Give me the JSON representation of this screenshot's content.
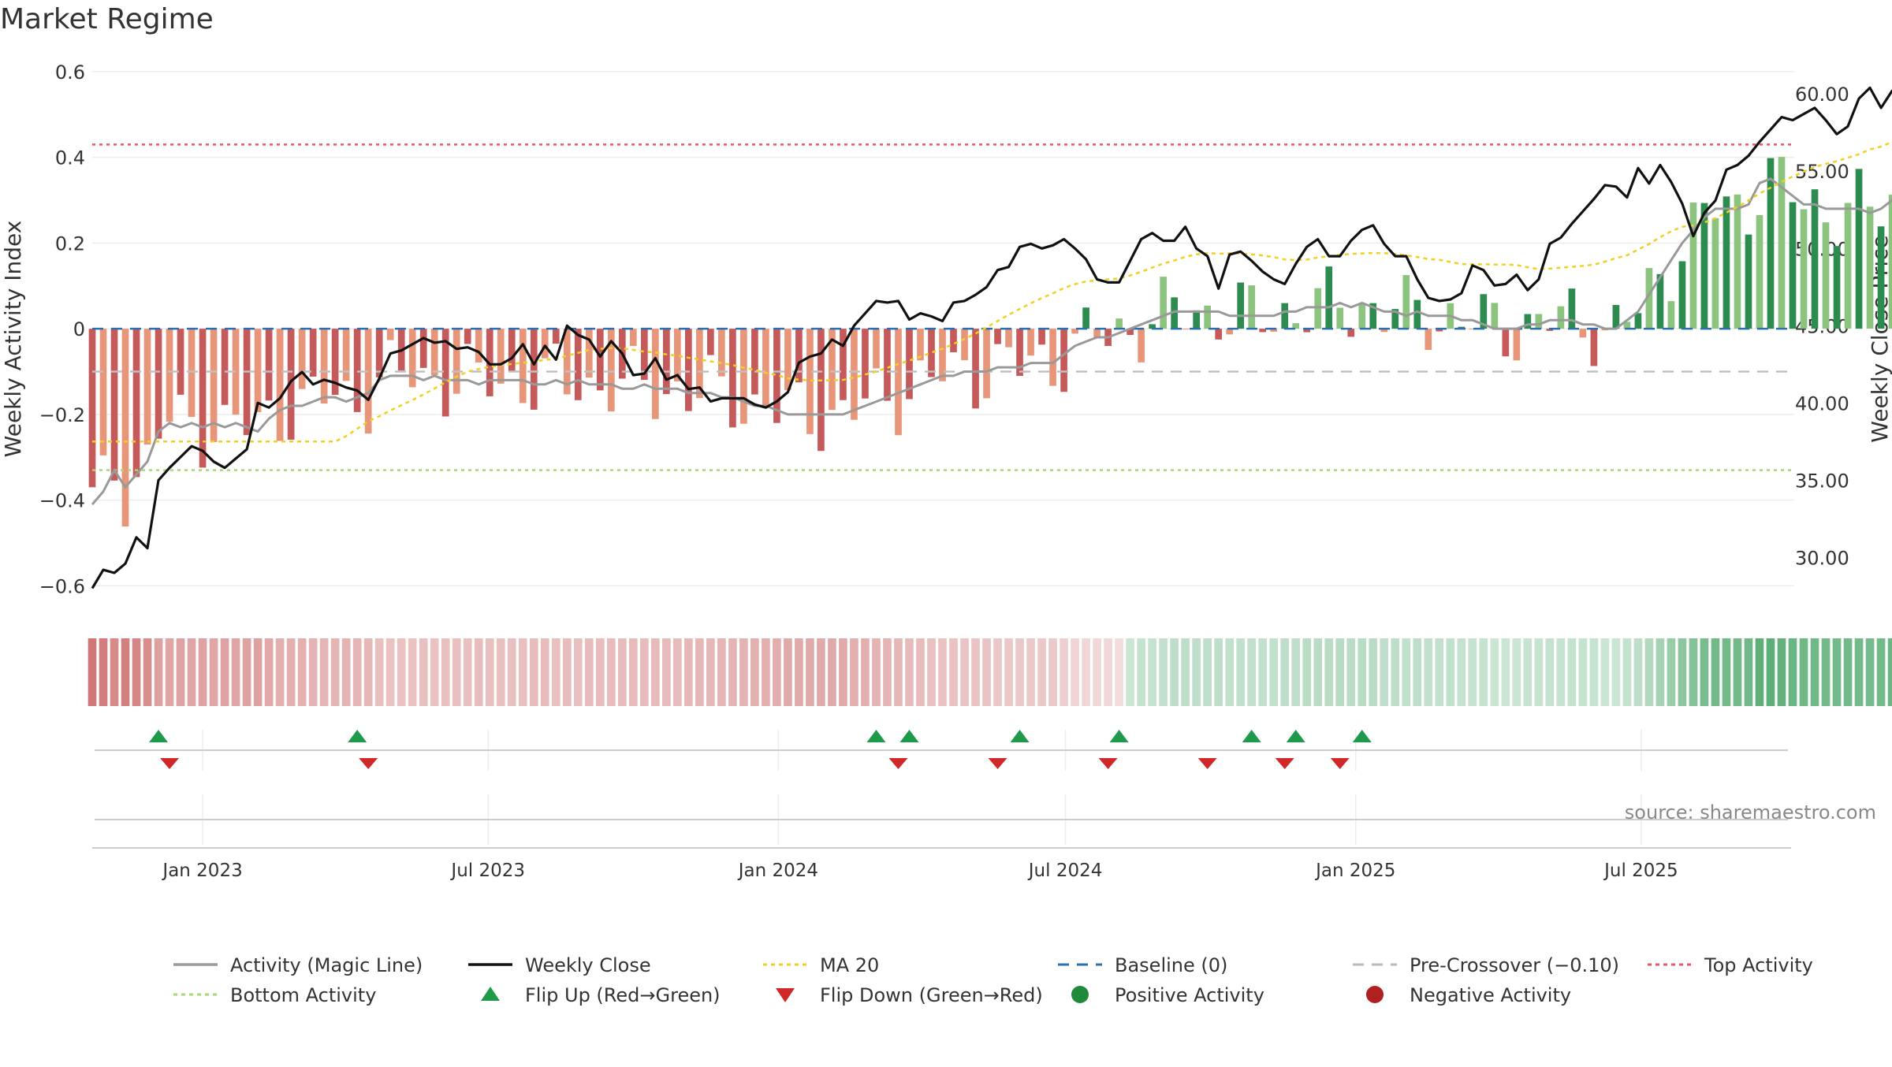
{
  "chart_data": {
    "type": "bar",
    "title": "Market Regime",
    "source": "source: sharemaestro.com",
    "y_left_label": "Weekly Activity Index",
    "y_right_label": "Weekly Close Price",
    "y_left_ticks": [
      "0.6",
      "0.4",
      "0.2",
      "0",
      "−0.2",
      "−0.4",
      "−0.6"
    ],
    "y_left_range": [
      -0.66,
      0.62
    ],
    "y_right_ticks": [
      "60.00",
      "55.00",
      "50.00",
      "45.00",
      "40.00",
      "35.00",
      "30.00"
    ],
    "y_right_range": [
      26.5,
      62.0
    ],
    "x_start": "2022-10-23",
    "x_end": "2025-10-06",
    "x_ticks": [
      "Jan 2023",
      "Jul 2023",
      "Jan 2024",
      "Jul 2024",
      "Jan 2025",
      "Jul 2025"
    ],
    "x_tick_dates": [
      "2023-01-01",
      "2023-07-01",
      "2024-01-01",
      "2024-07-01",
      "2025-01-01",
      "2025-07-01"
    ],
    "reference_lines": {
      "baseline": 0,
      "pre_crossover": -0.1,
      "top_activity": 0.43,
      "bottom_activity": -0.33
    },
    "legend": [
      {
        "label": "Activity (Magic Line)",
        "kind": "line",
        "color": "#999999"
      },
      {
        "label": "Weekly Close",
        "kind": "line",
        "color": "#111111"
      },
      {
        "label": "MA 20",
        "kind": "dotted",
        "color": "#f0d020"
      },
      {
        "label": "Baseline (0)",
        "kind": "dashed",
        "color": "#2a6fb0"
      },
      {
        "label": "Pre-Crossover (−0.10)",
        "kind": "dashed",
        "color": "#bbbbbb"
      },
      {
        "label": "Top Activity",
        "kind": "dotted",
        "color": "#e05a6a"
      },
      {
        "label": "Bottom Activity",
        "kind": "dotted",
        "color": "#a8d870"
      },
      {
        "label": "Flip Up (Red→Green)",
        "kind": "tri-up",
        "color": "#1f9a4a"
      },
      {
        "label": "Flip Down (Green→Red)",
        "kind": "tri-down",
        "color": "#d02828"
      },
      {
        "label": "Positive Activity",
        "kind": "dot",
        "color": "#1f8a3a"
      },
      {
        "label": "Negative Activity",
        "kind": "dot",
        "color": "#b02020"
      }
    ],
    "flip_up_dates": [
      "2022-12-04",
      "2023-04-09",
      "2024-03-03",
      "2024-03-24",
      "2024-06-02",
      "2024-08-04",
      "2024-10-27",
      "2024-11-24",
      "2025-01-05"
    ],
    "flip_down_dates": [
      "2022-12-11",
      "2023-04-16",
      "2024-03-17",
      "2024-05-19",
      "2024-07-28",
      "2024-09-29",
      "2024-11-17",
      "2024-12-22"
    ],
    "activity_weekly": [
      -0.41,
      -0.38,
      -0.33,
      -0.37,
      -0.34,
      -0.31,
      -0.24,
      -0.22,
      -0.23,
      -0.22,
      -0.23,
      -0.22,
      -0.23,
      -0.22,
      -0.23,
      -0.24,
      -0.21,
      -0.19,
      -0.18,
      -0.18,
      -0.17,
      -0.16,
      -0.16,
      -0.17,
      -0.16,
      -0.15,
      -0.12,
      -0.11,
      -0.11,
      -0.11,
      -0.12,
      -0.11,
      -0.12,
      -0.12,
      -0.12,
      -0.13,
      -0.12,
      -0.12,
      -0.12,
      -0.12,
      -0.13,
      -0.13,
      -0.12,
      -0.13,
      -0.12,
      -0.13,
      -0.13,
      -0.13,
      -0.14,
      -0.14,
      -0.13,
      -0.14,
      -0.14,
      -0.14,
      -0.15,
      -0.15,
      -0.15,
      -0.16,
      -0.16,
      -0.17,
      -0.18,
      -0.18,
      -0.19,
      -0.2,
      -0.2,
      -0.2,
      -0.2,
      -0.2,
      -0.2,
      -0.19,
      -0.18,
      -0.17,
      -0.16,
      -0.15,
      -0.14,
      -0.13,
      -0.12,
      -0.11,
      -0.11,
      -0.1,
      -0.1,
      -0.1,
      -0.09,
      -0.09,
      -0.09,
      -0.08,
      -0.08,
      -0.08,
      -0.06,
      -0.04,
      -0.03,
      -0.02,
      -0.02,
      -0.01,
      0.0,
      0.01,
      0.02,
      0.03,
      0.04,
      0.04,
      0.04,
      0.04,
      0.04,
      0.03,
      0.03,
      0.03,
      0.03,
      0.03,
      0.04,
      0.04,
      0.05,
      0.05,
      0.05,
      0.06,
      0.05,
      0.06,
      0.05,
      0.04,
      0.04,
      0.03,
      0.04,
      0.03,
      0.03,
      0.03,
      0.02,
      0.02,
      0.01,
      0.0,
      0.0,
      0.0,
      0.01,
      0.01,
      0.02,
      0.02,
      0.02,
      0.01,
      0.01,
      0.0,
      0.0,
      0.02,
      0.04,
      0.08,
      0.12,
      0.16,
      0.2,
      0.23,
      0.26,
      0.28,
      0.28,
      0.28,
      0.29,
      0.34,
      0.35,
      0.33,
      0.31,
      0.29,
      0.29,
      0.28,
      0.28,
      0.28,
      0.28,
      0.27,
      0.28,
      0.3,
      0.31,
      0.32,
      0.34,
      0.35,
      0.35,
      0.34,
      0.31,
      0.29,
      0.28,
      0.27,
      0.27
    ],
    "weekly_close": [
      28.0,
      29.2,
      29.0,
      29.6,
      31.3,
      30.6,
      35.0,
      35.8,
      36.5,
      37.2,
      36.9,
      36.2,
      35.8,
      36.4,
      37.0,
      40.0,
      39.7,
      40.3,
      41.4,
      42.0,
      41.2,
      41.5,
      41.3,
      41.0,
      40.8,
      40.2,
      41.6,
      43.2,
      43.4,
      43.8,
      44.2,
      43.9,
      44.0,
      43.5,
      43.6,
      43.3,
      42.5,
      42.5,
      42.9,
      43.8,
      42.5,
      43.7,
      42.8,
      45.0,
      44.4,
      44.1,
      43.0,
      44.0,
      43.2,
      41.8,
      41.9,
      42.9,
      41.5,
      41.8,
      40.9,
      41.0,
      40.1,
      40.3,
      40.3,
      40.3,
      39.9,
      39.7,
      40.1,
      40.7,
      42.6,
      43.0,
      43.2,
      44.1,
      43.7,
      45.0,
      45.8,
      46.6,
      46.5,
      46.6,
      45.4,
      45.8,
      45.6,
      45.3,
      46.5,
      46.6,
      47.0,
      47.5,
      48.6,
      48.8,
      50.1,
      50.3,
      50.0,
      50.2,
      50.6,
      50.0,
      49.3,
      48.0,
      47.8,
      47.8,
      49.2,
      50.6,
      51.0,
      50.5,
      50.5,
      51.4,
      50.0,
      49.5,
      47.4,
      49.6,
      49.8,
      49.2,
      48.5,
      48.0,
      47.7,
      49.0,
      50.1,
      50.6,
      49.5,
      49.5,
      50.5,
      51.2,
      51.5,
      50.3,
      49.5,
      49.5,
      48.0,
      46.8,
      46.6,
      46.7,
      47.1,
      48.9,
      48.6,
      47.6,
      47.7,
      48.3,
      47.3,
      48.0,
      50.3,
      50.7,
      51.6,
      52.4,
      53.2,
      54.1,
      54.0,
      53.3,
      55.2,
      54.2,
      55.4,
      54.3,
      52.9,
      50.8,
      52.3,
      53.1,
      55.1,
      55.4,
      56.0,
      56.9,
      57.7,
      58.5,
      58.3,
      58.7,
      59.1,
      58.3,
      57.4,
      57.9,
      59.7,
      60.4,
      59.1,
      60.2,
      58.8,
      59.3,
      59.7,
      59.9,
      60.6,
      60.0,
      59.6,
      59.1,
      59.6,
      61.0,
      61.6
    ]
  }
}
